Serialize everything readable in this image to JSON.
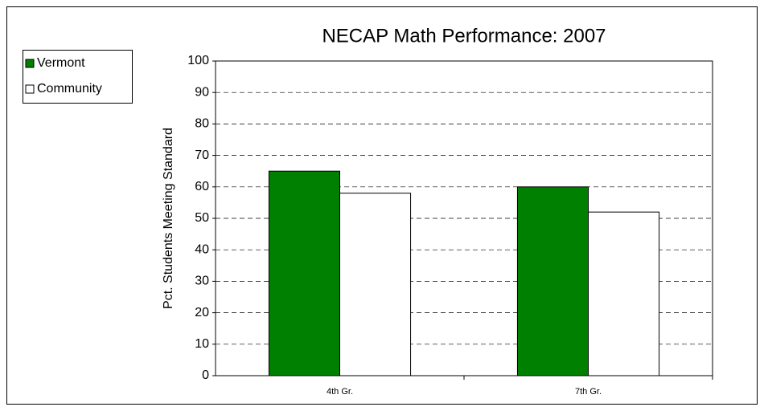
{
  "chart_data": {
    "type": "bar",
    "title": "NECAP Math Performance: 2007",
    "y_label": "Pct. Students Meeting Standard",
    "categories": [
      "4th Gr.",
      "7th Gr."
    ],
    "series": [
      {
        "name": "Vermont",
        "color": "#008000",
        "values": [
          65,
          60
        ]
      },
      {
        "name": "Community",
        "color": "#ffffff",
        "values": [
          58,
          52
        ]
      }
    ],
    "ylim": [
      0,
      100
    ],
    "yticks": [
      0,
      10,
      20,
      30,
      40,
      50,
      60,
      70,
      80,
      90,
      100
    ],
    "grid": true,
    "legend": "top-left"
  }
}
